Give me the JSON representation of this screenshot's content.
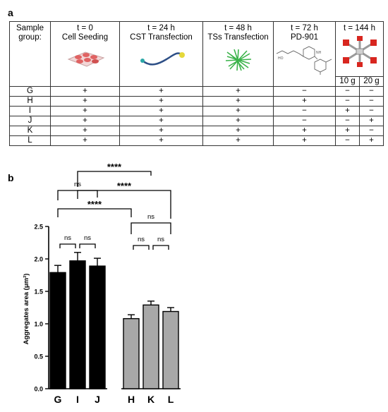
{
  "panels": {
    "a": "a",
    "b": "b"
  },
  "table": {
    "sample_header": "Sample group:",
    "columns": [
      {
        "time": "t = 0",
        "step": "Cell Seeding",
        "icon": "petri-dish-icon"
      },
      {
        "time": "t = 24 h",
        "step": "CST  Transfection",
        "icon": "dna-strand-icon"
      },
      {
        "time": "t = 48 h",
        "step": "TSs Transfection",
        "icon": "nanotube-cluster-icon"
      },
      {
        "time": "t = 72 h",
        "step": "PD-901",
        "icon": "chemical-structure-icon"
      },
      {
        "time": "t = 144 h",
        "step": "",
        "icon": "magnet-device-icon"
      }
    ],
    "subcolumns": [
      "10 g",
      "20 g"
    ],
    "rows": [
      {
        "group": "G",
        "cells": [
          "+",
          "+",
          "+",
          "−",
          "−",
          "−"
        ]
      },
      {
        "group": "H",
        "cells": [
          "+",
          "+",
          "+",
          "+",
          "−",
          "−"
        ]
      },
      {
        "group": "I",
        "cells": [
          "+",
          "+",
          "+",
          "−",
          "+",
          "−"
        ]
      },
      {
        "group": "J",
        "cells": [
          "+",
          "+",
          "+",
          "−",
          "−",
          "+"
        ]
      },
      {
        "group": "K",
        "cells": [
          "+",
          "+",
          "+",
          "+",
          "+",
          "−"
        ]
      },
      {
        "group": "L",
        "cells": [
          "+",
          "+",
          "+",
          "+",
          "−",
          "+"
        ]
      }
    ]
  },
  "chart_data": {
    "type": "bar",
    "ylabel": "Aggregates area (μm²)",
    "ylim": [
      0,
      2.5
    ],
    "yticks": [
      "0.0",
      "0.5",
      "1.0",
      "1.5",
      "2.0",
      "2.5"
    ],
    "categories": [
      "G",
      "I",
      "J",
      "H",
      "K",
      "L"
    ],
    "values": [
      1.79,
      1.97,
      1.89,
      1.08,
      1.29,
      1.19
    ],
    "errors": [
      0.11,
      0.13,
      0.12,
      0.06,
      0.06,
      0.06
    ],
    "colors": [
      "#000000",
      "#000000",
      "#000000",
      "#a8a8a8",
      "#a8a8a8",
      "#a8a8a8"
    ],
    "significance": [
      {
        "from": 0,
        "to": 1,
        "label": "ns"
      },
      {
        "from": 1,
        "to": 2,
        "label": "ns"
      },
      {
        "from": 3,
        "to": 4,
        "label": "ns"
      },
      {
        "from": 4,
        "to": 5,
        "label": "ns"
      },
      {
        "from": 3,
        "to": 5,
        "label": "ns"
      },
      {
        "from": 0,
        "to": 3,
        "label": "****"
      },
      {
        "from": 1,
        "to": 5,
        "label": "****"
      },
      {
        "from": 0,
        "to": 2,
        "label": "ns"
      },
      {
        "from": 1,
        "to": 4,
        "label": "****"
      }
    ]
  }
}
